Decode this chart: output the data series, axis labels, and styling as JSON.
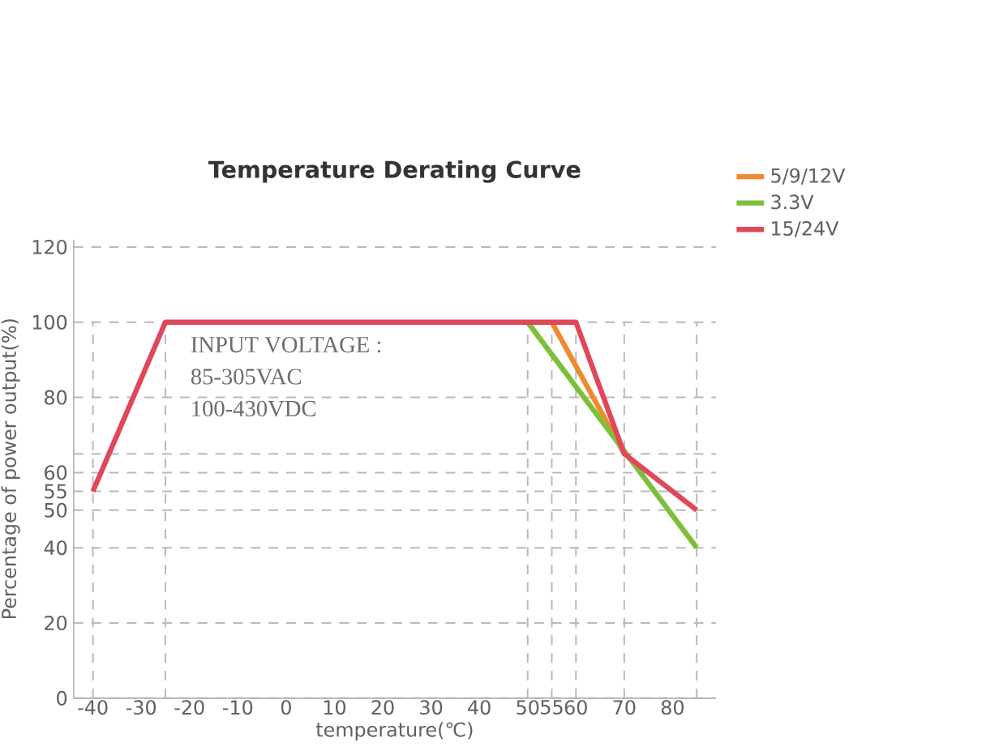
{
  "chart_data": {
    "type": "line",
    "title": "Temperature Derating Curve",
    "xlabel": "temperature(℃)",
    "ylabel": "Percentage of power output(%)",
    "series": [
      {
        "name": "5/9/12V",
        "color": "#f08a30",
        "x": [
          55,
          70
        ],
        "values": [
          100,
          65
        ]
      },
      {
        "name": "3.3V",
        "color": "#7cbf3a",
        "x": [
          50,
          85
        ],
        "values": [
          100,
          40
        ]
      },
      {
        "name": "15/24V",
        "color": "#e0485a",
        "x": [
          -40,
          -25,
          60,
          70,
          85
        ],
        "values": [
          55,
          100,
          100,
          65,
          50
        ]
      }
    ],
    "xlim": [
      -44,
      89
    ],
    "ylim": [
      0,
      122
    ],
    "xticks": [
      -40,
      -30,
      -20,
      -10,
      0,
      10,
      20,
      30,
      40,
      50,
      55,
      60,
      70,
      80
    ],
    "yticks": [
      0,
      20,
      40,
      50,
      55,
      60,
      80,
      100,
      120
    ],
    "grid": "y",
    "legend": "top right",
    "marker": "none",
    "line_style": "solid",
    "ref_lines": [
      {
        "axis": "y",
        "value": 65,
        "label": null
      },
      {
        "axis": "x",
        "value": -40,
        "label": null
      },
      {
        "axis": "x",
        "value": -25,
        "label": null
      },
      {
        "axis": "x",
        "value": 50,
        "label": null
      },
      {
        "axis": "x",
        "value": 55,
        "label": null
      },
      {
        "axis": "x",
        "value": 60,
        "label": null
      },
      {
        "axis": "x",
        "value": 70,
        "label": null
      },
      {
        "axis": "x",
        "value": 85,
        "label": null
      }
    ],
    "annotations": [
      "INPUT VOLTAGE :",
      "85-305VAC",
      "100-430VDC"
    ]
  }
}
